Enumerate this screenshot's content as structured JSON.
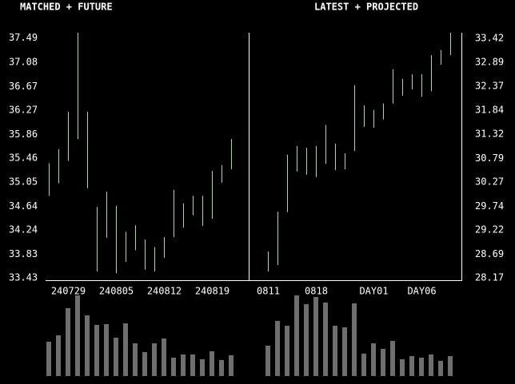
{
  "chart_data": [
    {
      "type": "range-bar",
      "title": "MATCHED + FUTURE",
      "color": "#8fe88f",
      "volume_color": "#6e6e6e",
      "categories": [
        null,
        null,
        "240729",
        null,
        null,
        null,
        null,
        "240805",
        null,
        null,
        null,
        null,
        "240812",
        null,
        null,
        null,
        null,
        "240819",
        null,
        null
      ],
      "high": [
        35.37,
        35.61,
        36.24,
        37.58,
        36.24,
        34.63,
        34.89,
        34.65,
        34.21,
        34.32,
        34.08,
        33.95,
        34.12,
        34.92,
        34.69,
        34.82,
        34.82,
        35.24,
        35.34,
        35.78
      ],
      "low": [
        34.82,
        35.03,
        35.41,
        35.78,
        34.95,
        33.54,
        34.11,
        33.51,
        33.7,
        33.9,
        33.57,
        33.54,
        33.77,
        34.12,
        34.28,
        34.49,
        34.31,
        34.43,
        35.04,
        35.27
      ],
      "volume": [
        43,
        51,
        85,
        101,
        76,
        64,
        65,
        48,
        66,
        41,
        30,
        41,
        47,
        23,
        27,
        27,
        21,
        31,
        20,
        26
      ],
      "volume_lim": [
        0,
        101
      ],
      "ylim": [
        33.39,
        37.58
      ],
      "yticks": [
        37.49,
        37.08,
        36.67,
        36.27,
        35.86,
        35.46,
        35.05,
        34.64,
        34.24,
        33.83,
        33.43
      ],
      "axis_side": "left"
    },
    {
      "type": "range-bar",
      "title": "LATEST + PROJECTED",
      "color": "#8fe88f",
      "volume_color": "#6e6e6e",
      "categories": [
        "0811",
        null,
        null,
        null,
        null,
        "0818",
        null,
        null,
        null,
        null,
        null,
        "DAY01",
        null,
        null,
        null,
        null,
        "DAY06",
        null,
        null,
        null
      ],
      "high": [
        28.75,
        29.62,
        30.87,
        31.06,
        31.02,
        31.06,
        31.52,
        31.11,
        30.9,
        32.39,
        31.95,
        31.85,
        31.99,
        32.74,
        32.53,
        32.63,
        32.63,
        33.05,
        33.16,
        33.54
      ],
      "low": [
        28.31,
        28.45,
        29.61,
        30.5,
        30.43,
        30.38,
        30.67,
        30.53,
        30.55,
        30.95,
        31.48,
        31.46,
        31.64,
        31.99,
        32.16,
        32.3,
        32.14,
        32.26,
        32.84,
        33.05
      ],
      "volume": [
        38,
        69,
        63,
        101,
        90,
        99,
        92,
        63,
        61,
        91,
        28,
        41,
        34,
        44,
        21,
        25,
        23,
        27,
        19,
        25
      ],
      "volume_lim": [
        0,
        101
      ],
      "ylim": [
        28.12,
        33.54
      ],
      "yticks": [
        33.42,
        32.89,
        32.37,
        31.84,
        31.32,
        30.79,
        30.27,
        29.74,
        29.22,
        28.69,
        28.17
      ],
      "axis_side": "right"
    }
  ]
}
